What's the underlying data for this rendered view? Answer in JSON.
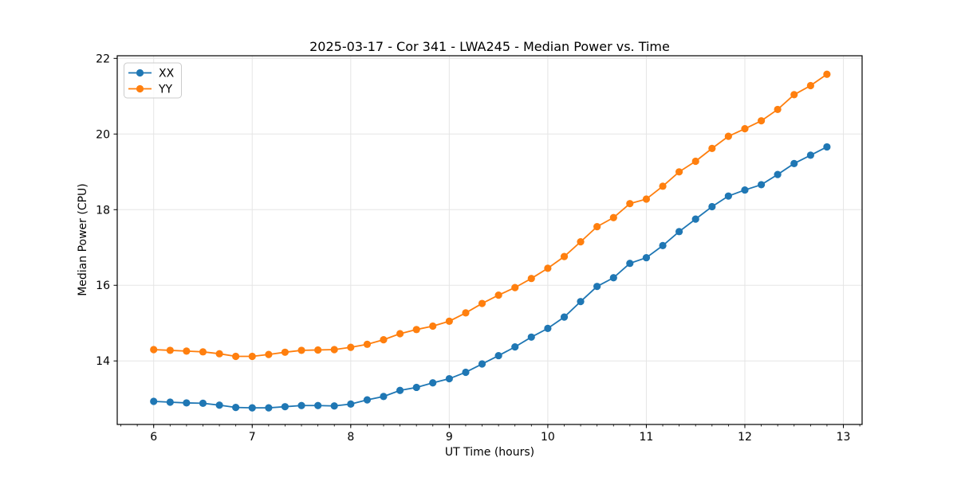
{
  "figure": {
    "background": "#ffffff"
  },
  "chart_data": {
    "type": "line",
    "title": "2025-03-17 - Cor 341 - LWA245 - Median Power vs. Time",
    "xlabel": "UT Time (hours)",
    "ylabel": "Median Power (CPU)",
    "xlim": [
      5.63,
      13.19
    ],
    "ylim": [
      12.32,
      22.07
    ],
    "x_major_ticks": [
      6,
      7,
      8,
      9,
      10,
      11,
      12,
      13
    ],
    "x_minor_tick_step": 0.166667,
    "y_major_ticks": [
      14,
      16,
      18,
      20,
      22
    ],
    "grid": true,
    "grid_color": "#e5e5e5",
    "legend": {
      "position": "upper-left"
    },
    "x": [
      6.0,
      6.167,
      6.333,
      6.5,
      6.667,
      6.833,
      7.0,
      7.167,
      7.333,
      7.5,
      7.667,
      7.833,
      8.0,
      8.167,
      8.333,
      8.5,
      8.667,
      8.833,
      9.0,
      9.167,
      9.333,
      9.5,
      9.667,
      9.833,
      10.0,
      10.167,
      10.333,
      10.5,
      10.667,
      10.833,
      11.0,
      11.167,
      11.333,
      11.5,
      11.667,
      11.833,
      12.0,
      12.167,
      12.333,
      12.5,
      12.667,
      12.833
    ],
    "series": [
      {
        "name": "XX",
        "color": "#1f77b4",
        "marker": "o",
        "values": [
          12.93,
          12.91,
          12.89,
          12.88,
          12.83,
          12.77,
          12.76,
          12.76,
          12.79,
          12.82,
          12.82,
          12.81,
          12.86,
          12.97,
          13.06,
          13.22,
          13.3,
          13.42,
          13.53,
          13.7,
          13.92,
          14.14,
          14.37,
          14.63,
          14.86,
          15.16,
          15.57,
          15.97,
          16.2,
          16.58,
          16.73,
          17.05,
          17.42,
          17.75,
          18.08,
          18.36,
          18.52,
          18.66,
          18.93,
          19.22,
          19.44,
          19.66
        ]
      },
      {
        "name": "YY",
        "color": "#ff7f0e",
        "marker": "o",
        "values": [
          14.3,
          14.28,
          14.26,
          14.24,
          14.19,
          14.12,
          14.12,
          14.17,
          14.23,
          14.28,
          14.29,
          14.3,
          14.36,
          14.44,
          14.56,
          14.72,
          14.83,
          14.92,
          15.05,
          15.27,
          15.52,
          15.74,
          15.94,
          16.18,
          16.45,
          16.76,
          17.15,
          17.55,
          17.79,
          18.16,
          18.28,
          18.62,
          19.0,
          19.28,
          19.62,
          19.94,
          20.14,
          20.35,
          20.65,
          21.04,
          21.28,
          21.58
        ]
      }
    ]
  }
}
